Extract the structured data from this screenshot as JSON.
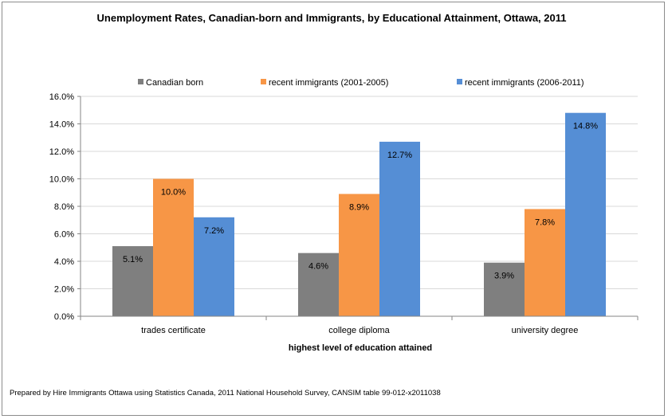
{
  "chart_data": {
    "type": "bar",
    "title": "Unemployment Rates, Canadian-born and Immigrants, by Educational Attainment, Ottawa, 2011",
    "xlabel": "highest level of education attained",
    "ylabel": "",
    "ylim": [
      0,
      16
    ],
    "y_ticks": [
      "0.0%",
      "2.0%",
      "4.0%",
      "6.0%",
      "8.0%",
      "10.0%",
      "12.0%",
      "14.0%",
      "16.0%"
    ],
    "grid": true,
    "legend_position": "top",
    "categories": [
      "trades certificate",
      "college diploma",
      "university degree"
    ],
    "series": [
      {
        "name": "Canadian born",
        "color": "#7f7f7f",
        "values": [
          5.1,
          4.6,
          3.9
        ],
        "labels": [
          "5.1%",
          "4.6%",
          "3.9%"
        ]
      },
      {
        "name": "recent immigrants (2001-2005)",
        "color": "#f79646",
        "values": [
          10.0,
          8.9,
          7.8
        ],
        "labels": [
          "10.0%",
          "8.9%",
          "7.8%"
        ]
      },
      {
        "name": "recent immigrants (2006-2011)",
        "color": "#558ed5",
        "values": [
          7.2,
          12.7,
          14.8
        ],
        "labels": [
          "7.2%",
          "12.7%",
          "14.8%"
        ]
      }
    ],
    "footnote": "Prepared by Hire Immigrants Ottawa using Statistics Canada, 2011 National Household Survey, CANSIM table 99-012-x2011038"
  }
}
